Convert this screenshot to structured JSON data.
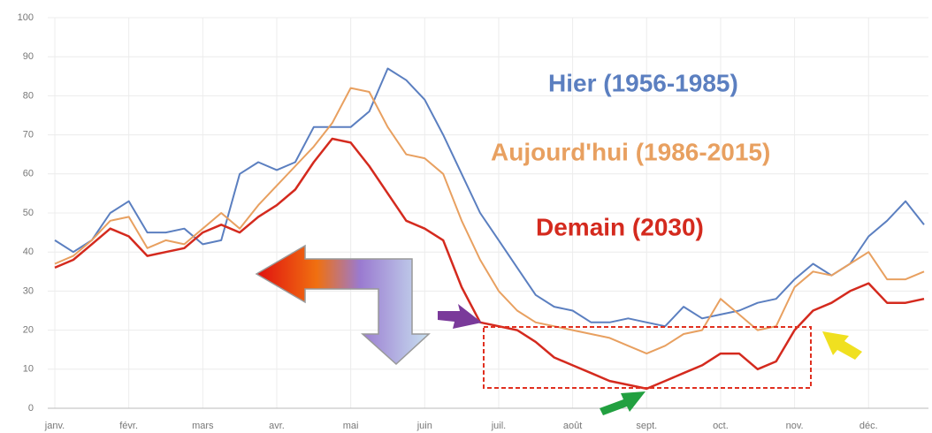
{
  "chart_data": {
    "type": "line",
    "categories": [
      "janv.",
      null,
      null,
      null,
      "févr.",
      null,
      null,
      null,
      "mars",
      null,
      null,
      null,
      "avr.",
      null,
      null,
      null,
      "mai",
      null,
      null,
      null,
      "juin",
      null,
      null,
      null,
      "juil.",
      null,
      null,
      null,
      "août",
      null,
      null,
      null,
      "sept.",
      null,
      null,
      null,
      "oct.",
      null,
      null,
      null,
      "nov.",
      null,
      null,
      null,
      "déc.",
      null,
      null,
      null
    ],
    "series": [
      {
        "name": "Hier (1956-1985)",
        "color": "#5b7fc0",
        "values": [
          43,
          40,
          43,
          50,
          53,
          45,
          45,
          46,
          42,
          43,
          60,
          63,
          61,
          63,
          72,
          72,
          72,
          76,
          87,
          84,
          79,
          70,
          60,
          50,
          43,
          36,
          29,
          26,
          25,
          22,
          22,
          23,
          22,
          21,
          26,
          23,
          24,
          25,
          27,
          28,
          33,
          37,
          34,
          37,
          44,
          48,
          53,
          47
        ]
      },
      {
        "name": "Aujourd'hui (1986-2015)",
        "color": "#e8a060",
        "values": [
          37,
          39,
          43,
          48,
          49,
          41,
          43,
          42,
          46,
          50,
          46,
          52,
          57,
          62,
          67,
          73,
          82,
          81,
          72,
          65,
          64,
          60,
          48,
          38,
          30,
          25,
          22,
          21,
          20,
          19,
          18,
          16,
          14,
          16,
          19,
          20,
          28,
          24,
          20,
          21,
          31,
          35,
          34,
          37,
          40,
          33,
          33,
          35
        ]
      },
      {
        "name": "Demain (2030)",
        "color": "#d42a1e",
        "values": [
          36,
          38,
          42,
          46,
          44,
          39,
          40,
          41,
          45,
          47,
          45,
          49,
          52,
          56,
          63,
          69,
          68,
          62,
          55,
          48,
          46,
          43,
          31,
          22,
          21,
          20,
          17,
          13,
          11,
          9,
          7,
          6,
          5,
          7,
          9,
          11,
          14,
          14,
          10,
          12,
          20,
          25,
          27,
          30,
          32,
          27,
          27,
          28
        ]
      }
    ],
    "ylim": [
      0,
      100
    ],
    "yticks": [
      0,
      10,
      20,
      30,
      40,
      50,
      60,
      70,
      80,
      90,
      100
    ],
    "grid": true
  }
}
